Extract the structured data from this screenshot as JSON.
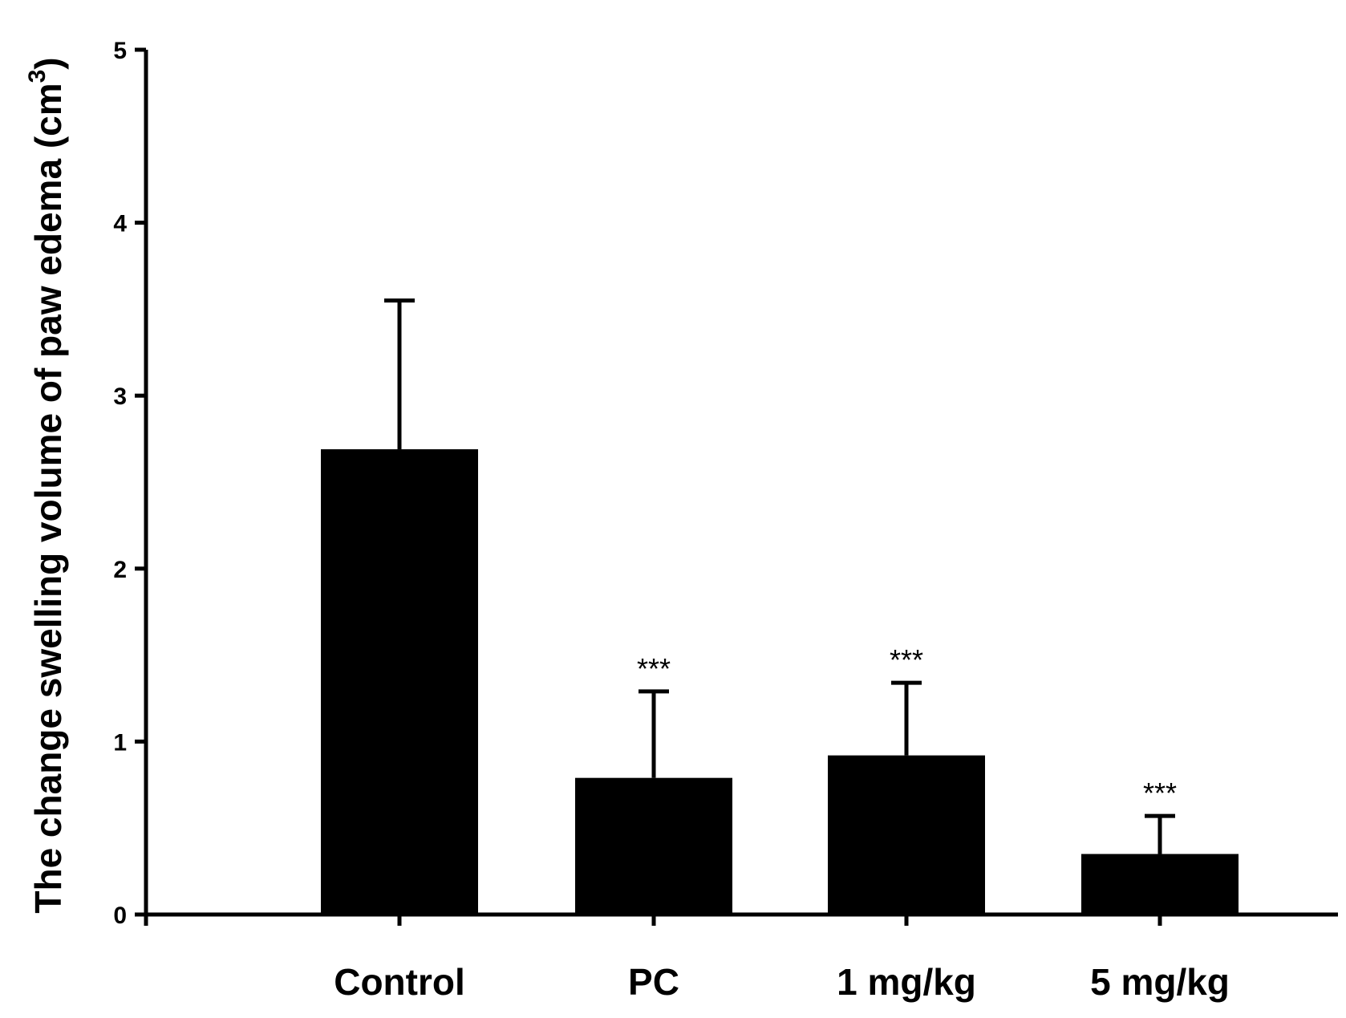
{
  "chart_data": {
    "type": "bar",
    "title": "",
    "xlabel": "",
    "ylabel": "The change swelling volume of paw edema (cm",
    "ylabel_superscript": "3",
    "ylabel_close": ")",
    "ylim": [
      0,
      5
    ],
    "yticks": [
      "0",
      "1",
      "2",
      "3",
      "4",
      "5"
    ],
    "categories": [
      "Control",
      "PC",
      "1 mg/kg",
      "5 mg/kg"
    ],
    "values": [
      2.69,
      0.79,
      0.92,
      0.35
    ],
    "error_upper": [
      3.55,
      1.29,
      1.34,
      0.57
    ],
    "significance": [
      "",
      "***",
      "***",
      "***"
    ],
    "bar_color": "#000000",
    "grid": false
  }
}
